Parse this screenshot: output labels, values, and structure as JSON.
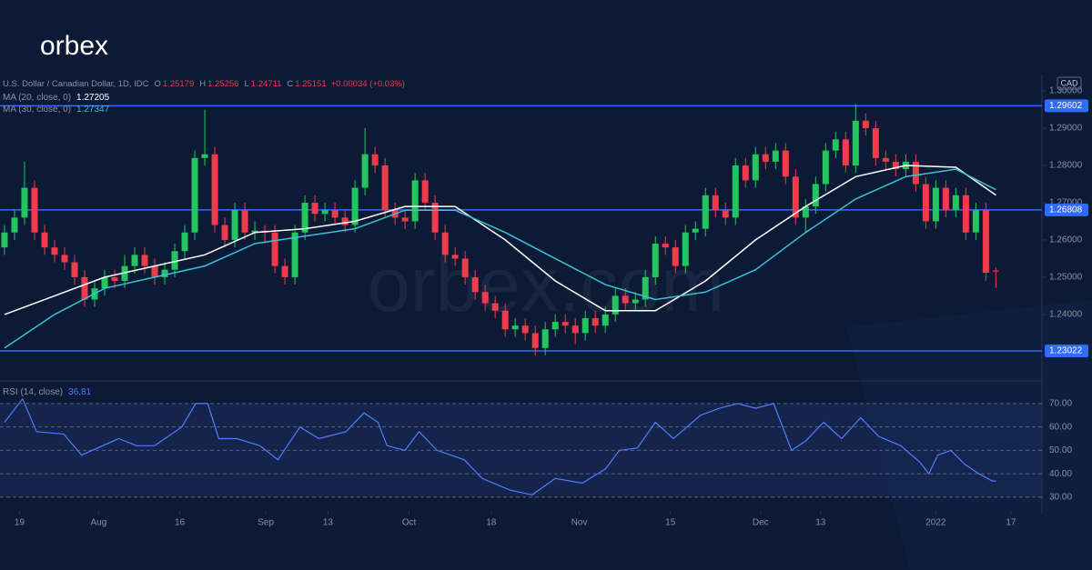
{
  "logo": "orbex",
  "watermark": "orbex.com",
  "chart_data": {
    "type": "candlestick",
    "title": "U.S. Dollar / Canadian Dollar, 1D, IDC",
    "ohlc_labels": [
      "O",
      "H",
      "L",
      "C"
    ],
    "change": "+0.00034 (+0.03%)",
    "currency": "CAD",
    "up_color": "#22c55e",
    "down_color": "#ef3b4a",
    "level_color": "#2f6bff",
    "ohlc": [
      [
        1.258,
        1.264,
        1.256,
        1.262
      ],
      [
        1.262,
        1.268,
        1.26,
        1.266
      ],
      [
        1.266,
        1.281,
        1.264,
        1.274
      ],
      [
        1.274,
        1.276,
        1.26,
        1.262
      ],
      [
        1.262,
        1.264,
        1.256,
        1.258
      ],
      [
        1.258,
        1.26,
        1.254,
        1.256
      ],
      [
        1.256,
        1.258,
        1.252,
        1.254
      ],
      [
        1.254,
        1.256,
        1.248,
        1.25
      ],
      [
        1.25,
        1.252,
        1.242,
        1.244
      ],
      [
        1.244,
        1.249,
        1.242,
        1.247
      ],
      [
        1.247,
        1.252,
        1.245,
        1.25
      ],
      [
        1.25,
        1.252,
        1.247,
        1.249
      ],
      [
        1.249,
        1.256,
        1.247,
        1.253
      ],
      [
        1.253,
        1.258,
        1.251,
        1.256
      ],
      [
        1.256,
        1.258,
        1.251,
        1.253
      ],
      [
        1.253,
        1.255,
        1.248,
        1.25
      ],
      [
        1.25,
        1.254,
        1.248,
        1.252
      ],
      [
        1.252,
        1.259,
        1.25,
        1.257
      ],
      [
        1.257,
        1.264,
        1.255,
        1.262
      ],
      [
        1.262,
        1.284,
        1.26,
        1.282
      ],
      [
        1.282,
        1.295,
        1.28,
        1.283
      ],
      [
        1.283,
        1.285,
        1.262,
        1.264
      ],
      [
        1.264,
        1.266,
        1.258,
        1.26
      ],
      [
        1.26,
        1.27,
        1.258,
        1.268
      ],
      [
        1.268,
        1.27,
        1.26,
        1.262
      ],
      [
        1.262,
        1.265,
        1.26,
        1.2625
      ],
      [
        1.2625,
        1.264,
        1.259,
        1.262
      ],
      [
        1.262,
        1.264,
        1.251,
        1.253
      ],
      [
        1.253,
        1.255,
        1.248,
        1.25
      ],
      [
        1.25,
        1.264,
        1.248,
        1.262
      ],
      [
        1.262,
        1.272,
        1.26,
        1.27
      ],
      [
        1.27,
        1.272,
        1.265,
        1.267
      ],
      [
        1.267,
        1.27,
        1.265,
        1.268
      ],
      [
        1.268,
        1.27,
        1.264,
        1.266
      ],
      [
        1.266,
        1.268,
        1.262,
        1.264
      ],
      [
        1.264,
        1.276,
        1.262,
        1.274
      ],
      [
        1.274,
        1.29,
        1.272,
        1.283
      ],
      [
        1.283,
        1.285,
        1.278,
        1.28
      ],
      [
        1.28,
        1.282,
        1.266,
        1.268
      ],
      [
        1.268,
        1.27,
        1.264,
        1.266
      ],
      [
        1.266,
        1.268,
        1.263,
        1.265
      ],
      [
        1.265,
        1.278,
        1.263,
        1.276
      ],
      [
        1.276,
        1.278,
        1.268,
        1.27
      ],
      [
        1.27,
        1.272,
        1.26,
        1.262
      ],
      [
        1.262,
        1.264,
        1.254,
        1.256
      ],
      [
        1.256,
        1.258,
        1.253,
        1.255
      ],
      [
        1.255,
        1.257,
        1.248,
        1.25
      ],
      [
        1.25,
        1.252,
        1.244,
        1.246
      ],
      [
        1.246,
        1.248,
        1.241,
        1.243
      ],
      [
        1.243,
        1.245,
        1.239,
        1.241
      ],
      [
        1.241,
        1.243,
        1.234,
        1.236
      ],
      [
        1.236,
        1.239,
        1.234,
        1.237
      ],
      [
        1.237,
        1.239,
        1.233,
        1.235
      ],
      [
        1.235,
        1.237,
        1.229,
        1.231
      ],
      [
        1.231,
        1.238,
        1.229,
        1.236
      ],
      [
        1.236,
        1.24,
        1.234,
        1.238
      ],
      [
        1.238,
        1.24,
        1.235,
        1.237
      ],
      [
        1.237,
        1.239,
        1.232,
        1.235
      ],
      [
        1.235,
        1.241,
        1.233,
        1.239
      ],
      [
        1.239,
        1.241,
        1.235,
        1.237
      ],
      [
        1.237,
        1.242,
        1.235,
        1.24
      ],
      [
        1.24,
        1.247,
        1.238,
        1.245
      ],
      [
        1.245,
        1.247,
        1.241,
        1.243
      ],
      [
        1.243,
        1.246,
        1.241,
        1.244
      ],
      [
        1.244,
        1.252,
        1.242,
        1.25
      ],
      [
        1.25,
        1.261,
        1.248,
        1.259
      ],
      [
        1.259,
        1.261,
        1.256,
        1.258
      ],
      [
        1.258,
        1.26,
        1.251,
        1.253
      ],
      [
        1.253,
        1.264,
        1.251,
        1.262
      ],
      [
        1.262,
        1.265,
        1.26,
        1.263
      ],
      [
        1.263,
        1.274,
        1.261,
        1.272
      ],
      [
        1.272,
        1.274,
        1.266,
        1.268
      ],
      [
        1.268,
        1.27,
        1.264,
        1.266
      ],
      [
        1.266,
        1.282,
        1.264,
        1.28
      ],
      [
        1.28,
        1.282,
        1.274,
        1.276
      ],
      [
        1.276,
        1.285,
        1.274,
        1.283
      ],
      [
        1.283,
        1.285,
        1.279,
        1.281
      ],
      [
        1.281,
        1.286,
        1.279,
        1.284
      ],
      [
        1.284,
        1.286,
        1.275,
        1.277
      ],
      [
        1.277,
        1.279,
        1.264,
        1.266
      ],
      [
        1.266,
        1.271,
        1.262,
        1.269
      ],
      [
        1.269,
        1.277,
        1.267,
        1.275
      ],
      [
        1.275,
        1.286,
        1.273,
        1.284
      ],
      [
        1.284,
        1.289,
        1.282,
        1.287
      ],
      [
        1.287,
        1.289,
        1.278,
        1.28
      ],
      [
        1.28,
        1.2965,
        1.278,
        1.292
      ],
      [
        1.292,
        1.294,
        1.288,
        1.29
      ],
      [
        1.29,
        1.292,
        1.28,
        1.282
      ],
      [
        1.282,
        1.284,
        1.279,
        1.281
      ],
      [
        1.281,
        1.283,
        1.277,
        1.279
      ],
      [
        1.279,
        1.283,
        1.277,
        1.281
      ],
      [
        1.281,
        1.283,
        1.273,
        1.275
      ],
      [
        1.275,
        1.277,
        1.263,
        1.265
      ],
      [
        1.265,
        1.276,
        1.263,
        1.274
      ],
      [
        1.274,
        1.276,
        1.266,
        1.268
      ],
      [
        1.268,
        1.274,
        1.266,
        1.272
      ],
      [
        1.272,
        1.274,
        1.26,
        1.262
      ],
      [
        1.262,
        1.27,
        1.26,
        1.268
      ],
      [
        1.268,
        1.27,
        1.249,
        1.25117
      ],
      [
        1.25179,
        1.25256,
        1.24711,
        1.25151
      ]
    ],
    "series": [
      {
        "name": "MA (20, close, 0)",
        "color": "#ffffff",
        "x": [
          0,
          5,
          10,
          15,
          20,
          25,
          30,
          35,
          40,
          45,
          50,
          55,
          60,
          65,
          70,
          75,
          80,
          85,
          90,
          95,
          99
        ],
        "values": [
          1.24,
          1.245,
          1.25,
          1.253,
          1.256,
          1.262,
          1.263,
          1.265,
          1.269,
          1.269,
          1.26,
          1.249,
          1.241,
          1.241,
          1.249,
          1.26,
          1.269,
          1.277,
          1.28,
          1.2795,
          1.27205
        ]
      },
      {
        "name": "MA (30, close, 0)",
        "color": "#3cc0d8",
        "x": [
          0,
          5,
          10,
          15,
          20,
          25,
          30,
          35,
          40,
          45,
          50,
          55,
          60,
          65,
          70,
          75,
          80,
          85,
          90,
          95,
          99
        ],
        "values": [
          1.231,
          1.24,
          1.247,
          1.25,
          1.253,
          1.259,
          1.261,
          1.263,
          1.268,
          1.268,
          1.262,
          1.255,
          1.248,
          1.244,
          1.246,
          1.252,
          1.262,
          1.271,
          1.277,
          1.279,
          1.27347
        ]
      }
    ],
    "levels": [
      1.29602,
      1.26808,
      1.23022
    ],
    "xlim": [
      -0.45,
      103.6
    ],
    "ylim": [
      1.2224,
      1.3044
    ],
    "yticks": [
      {
        "value": 1.3,
        "label": "1.30000"
      },
      {
        "value": 1.29,
        "label": "1.29000"
      },
      {
        "value": 1.28,
        "label": "1.28000"
      },
      {
        "value": 1.27,
        "label": "1.27000"
      },
      {
        "value": 1.26,
        "label": "1.26000"
      },
      {
        "value": 1.25,
        "label": "1.25000"
      },
      {
        "value": 1.24,
        "label": "1.24000"
      }
    ],
    "xticks": [
      {
        "value": 1.5,
        "label": "19"
      },
      {
        "value": 9.4,
        "label": "Aug"
      },
      {
        "value": 17.5,
        "label": "16"
      },
      {
        "value": 26.1,
        "label": "Sep"
      },
      {
        "value": 32.3,
        "label": "13"
      },
      {
        "value": 40.4,
        "label": "Oct"
      },
      {
        "value": 48.6,
        "label": "18"
      },
      {
        "value": 57.4,
        "label": "Nov"
      },
      {
        "value": 66.5,
        "label": "15"
      },
      {
        "value": 75.5,
        "label": "Dec"
      },
      {
        "value": 81.5,
        "label": "13"
      },
      {
        "value": 93,
        "label": "2022"
      },
      {
        "value": 100.5,
        "label": "17"
      }
    ],
    "rsi": {
      "name": "RSI (14, close)",
      "color": "#4f7dff",
      "x": [
        0,
        1.8,
        3.2,
        5.9,
        7.7,
        11.4,
        13.2,
        15,
        17.7,
        19.1,
        20.3,
        21.4,
        23.2,
        25.5,
        27.3,
        29.5,
        31.4,
        34.1,
        35.9,
        37.3,
        38.2,
        40,
        41.4,
        43.2,
        45.9,
        47.7,
        50.5,
        52.7,
        55,
        57.7,
        60,
        61.4,
        63.2,
        65,
        66.8,
        69.5,
        71.4,
        73.2,
        75,
        76.8,
        78.6,
        80,
        81.8,
        83.6,
        85.5,
        87.3,
        89.5,
        91.4,
        92.3,
        93.2,
        94.5,
        95.9,
        97.3,
        98.6,
        99
      ],
      "values": [
        62,
        72,
        58,
        57,
        48,
        55,
        52,
        52,
        60,
        70,
        70,
        55,
        55,
        52,
        46,
        60,
        55,
        58,
        66,
        62,
        52,
        50,
        58,
        50,
        46,
        38,
        33,
        31,
        38,
        36,
        42,
        50,
        51,
        62,
        55,
        65,
        68,
        70,
        68,
        70,
        50,
        54,
        62,
        55,
        64,
        56,
        52,
        45,
        40,
        48,
        50,
        44,
        40,
        37,
        36.81
      ],
      "ylim": [
        24.9,
        79.3
      ],
      "band": [
        30,
        70
      ],
      "yticks": [
        {
          "value": 70,
          "label": "70.00"
        },
        {
          "value": 60,
          "label": "60.00"
        },
        {
          "value": 50,
          "label": "50.00"
        },
        {
          "value": 40,
          "label": "40.00"
        },
        {
          "value": 30,
          "label": "30.00"
        }
      ]
    }
  }
}
